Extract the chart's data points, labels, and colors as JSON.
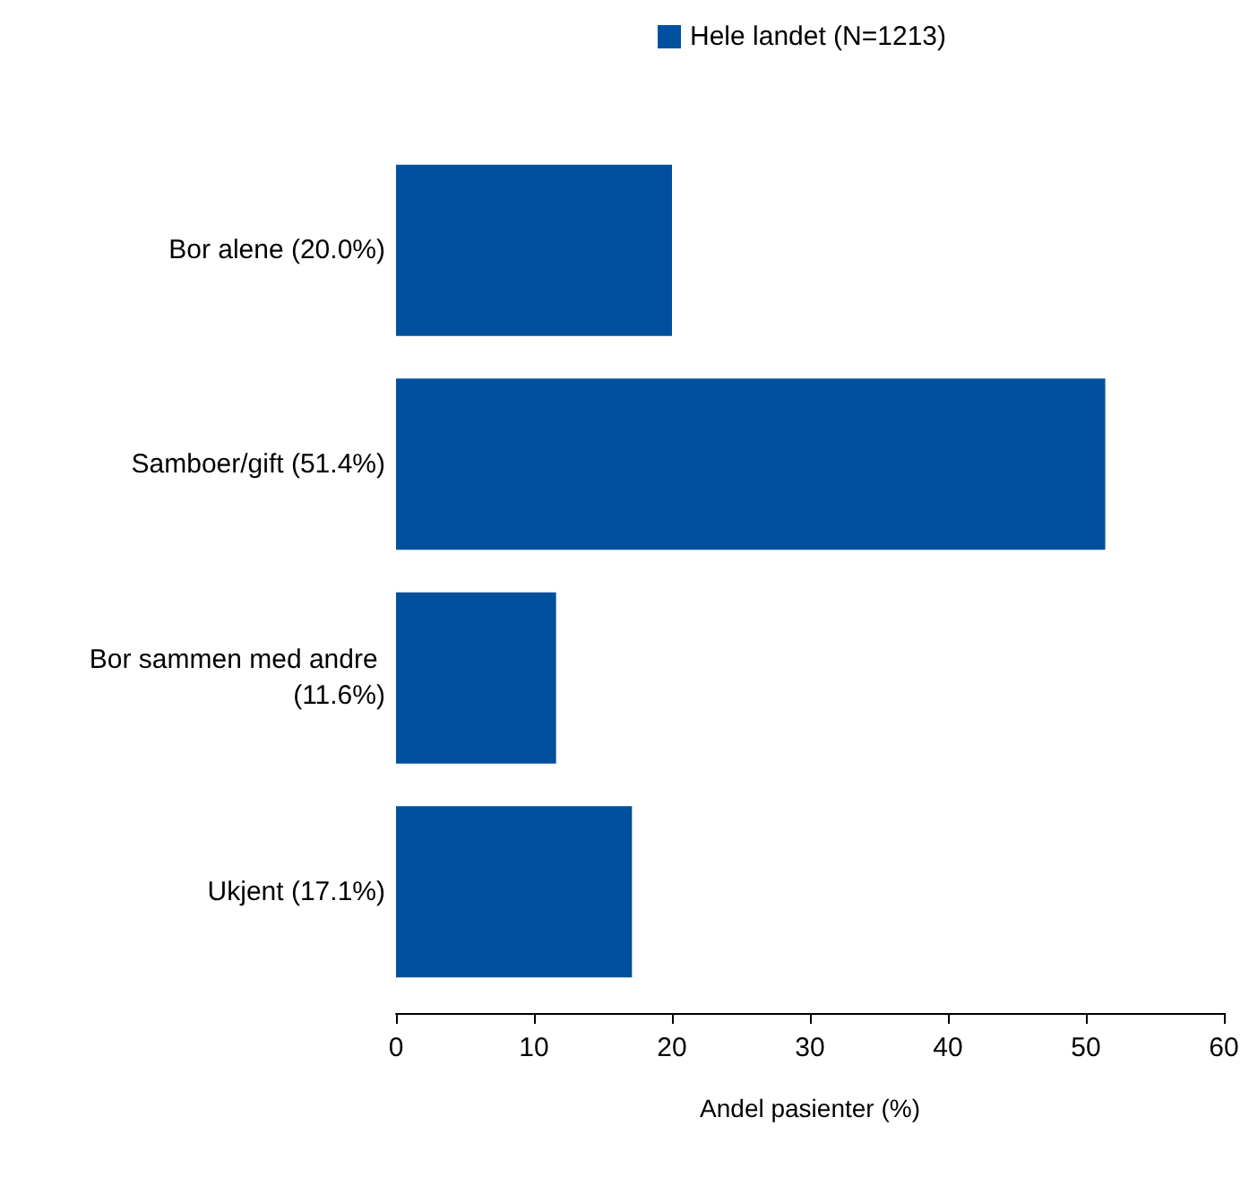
{
  "chart_data": {
    "type": "bar",
    "orientation": "horizontal",
    "categories": [
      "Bor alene (20.0%)",
      "Samboer/gift (51.4%)",
      "Bor sammen med andre (11.6%)",
      "Ukjent (17.1%)"
    ],
    "series": [
      {
        "name": "Hele landet (N=1213)",
        "color": "#00509e",
        "values": [
          20.0,
          51.4,
          11.6,
          17.1
        ]
      }
    ],
    "xlabel": "Andel pasienter (%)",
    "xlim": [
      0,
      60
    ],
    "xticks": [
      0,
      10,
      20,
      30,
      40,
      50,
      60
    ],
    "grid": false,
    "legend": "top"
  }
}
